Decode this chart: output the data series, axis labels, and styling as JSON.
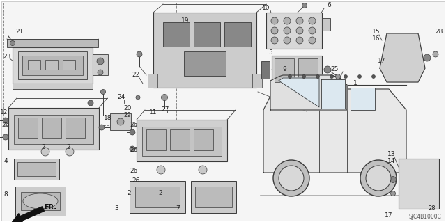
{
  "fig_width": 6.4,
  "fig_height": 3.19,
  "dpi": 100,
  "bg_color": "#ffffff",
  "diagram_code": "SJC4B1000C",
  "line_color": "#3a3a3a",
  "fill_color": "#e8e8e8",
  "hatch_color": "#aaaaaa"
}
